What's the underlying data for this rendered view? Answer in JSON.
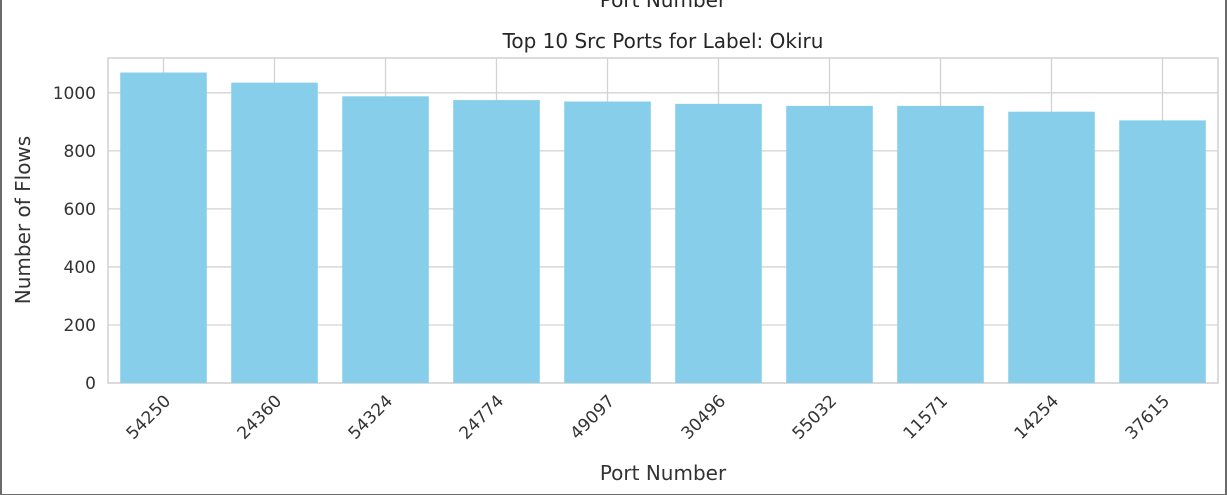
{
  "clipped_top_text": "Port Number",
  "chart_data": {
    "type": "bar",
    "title": "Top 10 Src Ports for Label: Okiru",
    "xlabel": "Port Number",
    "ylabel": "Number of Flows",
    "categories": [
      "54250",
      "24360",
      "54324",
      "24774",
      "49097",
      "30496",
      "55032",
      "11571",
      "14254",
      "37615"
    ],
    "values": [
      1070,
      1035,
      988,
      975,
      970,
      962,
      955,
      955,
      935,
      905
    ],
    "ylim": [
      0,
      1120
    ],
    "yticks": [
      0,
      200,
      400,
      600,
      800,
      1000
    ],
    "grid": true,
    "bar_color": "#87ceeb"
  }
}
